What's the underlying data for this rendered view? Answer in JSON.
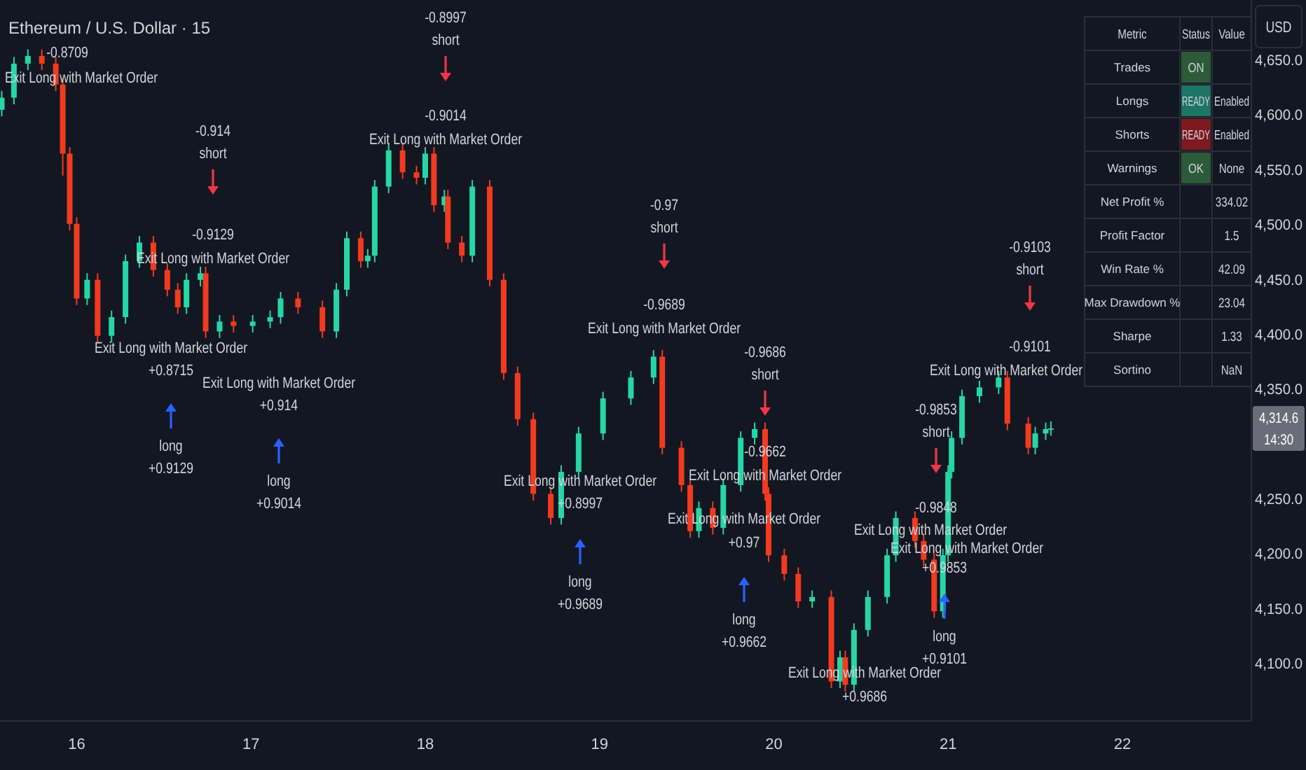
{
  "chart_data": [
    {
      "type": "candlestick",
      "title": "Ethereum / U.S. Dollar · 15",
      "ylabel": "USD",
      "x": [
        15.57,
        15.64,
        15.72,
        15.8,
        15.88,
        15.92,
        15.96,
        16.0,
        16.06,
        16.12,
        16.2,
        16.28,
        16.36,
        16.44,
        16.52,
        16.58,
        16.63,
        16.71,
        16.74,
        16.82,
        16.9,
        17.01,
        17.11,
        17.17,
        17.27,
        17.41,
        17.49,
        17.55,
        17.63,
        17.67,
        17.71,
        17.79,
        17.87,
        17.95,
        18.0,
        18.05,
        18.11,
        18.13,
        18.21,
        18.27,
        18.37,
        18.45,
        18.53,
        18.62,
        18.72,
        18.78,
        18.88,
        19.02,
        19.18,
        19.31,
        19.36,
        19.47,
        19.52,
        19.57,
        19.65,
        19.71,
        19.81,
        19.89,
        19.95,
        19.97,
        20.06,
        20.14,
        20.22,
        20.33,
        20.38,
        20.41,
        20.46,
        20.54,
        20.65,
        20.7,
        20.81,
        20.86,
        20.92,
        20.97,
        21.0,
        21.02,
        21.08,
        21.18,
        21.29,
        21.34,
        21.46,
        21.5,
        21.56,
        21.59
      ],
      "ohlc": [
        [
          4605,
          4622,
          4599,
          4616
        ],
        [
          4616,
          4653,
          4610,
          4647
        ],
        [
          4647,
          4660,
          4641,
          4654
        ],
        [
          4654,
          4660,
          4641,
          4647
        ],
        [
          4647,
          4653,
          4622,
          4628
        ],
        [
          4628,
          4634,
          4545,
          4565
        ],
        [
          4565,
          4571,
          4495,
          4501
        ],
        [
          4501,
          4507,
          4427,
          4433
        ],
        [
          4433,
          4456,
          4427,
          4450
        ],
        [
          4450,
          4456,
          4393,
          4399
        ],
        [
          4399,
          4422,
          4393,
          4416
        ],
        [
          4416,
          4473,
          4410,
          4467
        ],
        [
          4467,
          4490,
          4461,
          4484
        ],
        [
          4484,
          4490,
          4453,
          4459
        ],
        [
          4459,
          4465,
          4435,
          4441
        ],
        [
          4441,
          4447,
          4419,
          4425
        ],
        [
          4425,
          4456,
          4419,
          4450
        ],
        [
          4450,
          4462,
          4444,
          4456
        ],
        [
          4456,
          4462,
          4397,
          4403
        ],
        [
          4403,
          4418,
          4397,
          4412
        ],
        [
          4412,
          4418,
          4402,
          4408
        ],
        [
          4408,
          4418,
          4402,
          4412
        ],
        [
          4412,
          4422,
          4406,
          4416
        ],
        [
          4416,
          4439,
          4410,
          4433
        ],
        [
          4433,
          4439,
          4419,
          4425
        ],
        [
          4425,
          4431,
          4397,
          4403
        ],
        [
          4403,
          4447,
          4397,
          4441
        ],
        [
          4441,
          4494,
          4435,
          4488
        ],
        [
          4488,
          4494,
          4461,
          4467
        ],
        [
          4467,
          4478,
          4461,
          4472
        ],
        [
          4472,
          4541,
          4466,
          4535
        ],
        [
          4535,
          4574,
          4529,
          4568
        ],
        [
          4568,
          4574,
          4542,
          4548
        ],
        [
          4548,
          4554,
          4537,
          4543
        ],
        [
          4543,
          4571,
          4537,
          4565
        ],
        [
          4565,
          4571,
          4512,
          4518
        ],
        [
          4518,
          4532,
          4512,
          4526
        ],
        [
          4526,
          4532,
          4478,
          4484
        ],
        [
          4484,
          4490,
          4466,
          4472
        ],
        [
          4472,
          4541,
          4466,
          4535
        ],
        [
          4535,
          4541,
          4444,
          4450
        ],
        [
          4450,
          4456,
          4359,
          4365
        ],
        [
          4365,
          4371,
          4317,
          4323
        ],
        [
          4323,
          4329,
          4249,
          4255
        ],
        [
          4255,
          4261,
          4227,
          4233
        ],
        [
          4233,
          4281,
          4227,
          4275
        ],
        [
          4275,
          4316,
          4269,
          4310
        ],
        [
          4310,
          4348,
          4304,
          4342
        ],
        [
          4342,
          4367,
          4336,
          4361
        ],
        [
          4361,
          4386,
          4355,
          4380
        ],
        [
          4380,
          4386,
          4291,
          4297
        ],
        [
          4297,
          4303,
          4257,
          4263
        ],
        [
          4263,
          4269,
          4215,
          4221
        ],
        [
          4221,
          4248,
          4215,
          4242
        ],
        [
          4242,
          4248,
          4218,
          4224
        ],
        [
          4224,
          4269,
          4218,
          4263
        ],
        [
          4263,
          4312,
          4257,
          4306
        ],
        [
          4306,
          4320,
          4300,
          4314
        ],
        [
          4314,
          4320,
          4249,
          4255
        ],
        [
          4255,
          4261,
          4193,
          4199
        ],
        [
          4199,
          4205,
          4176,
          4182
        ],
        [
          4182,
          4188,
          4151,
          4157
        ],
        [
          4157,
          4167,
          4151,
          4161
        ],
        [
          4161,
          4167,
          4078,
          4084
        ],
        [
          4084,
          4112,
          4078,
          4106
        ],
        [
          4106,
          4112,
          4075,
          4081
        ],
        [
          4081,
          4137,
          4075,
          4131
        ],
        [
          4131,
          4167,
          4125,
          4161
        ],
        [
          4161,
          4205,
          4155,
          4199
        ],
        [
          4199,
          4239,
          4193,
          4233
        ],
        [
          4233,
          4239,
          4206,
          4212
        ],
        [
          4212,
          4218,
          4189,
          4195
        ],
        [
          4195,
          4201,
          4142,
          4148
        ],
        [
          4148,
          4205,
          4142,
          4199
        ],
        [
          4199,
          4281,
          4193,
          4275
        ],
        [
          4275,
          4312,
          4269,
          4306
        ],
        [
          4306,
          4350,
          4300,
          4344
        ],
        [
          4344,
          4358,
          4338,
          4352
        ],
        [
          4352,
          4367,
          4346,
          4361
        ],
        [
          4361,
          4367,
          4313,
          4319
        ],
        [
          4319,
          4325,
          4291,
          4297
        ],
        [
          4297,
          4316,
          4291,
          4310
        ],
        [
          4310,
          4320,
          4304,
          4314
        ],
        [
          4314,
          4321,
          4308,
          4314.6
        ]
      ],
      "colors": [
        "#26d7a5",
        "#26d7a5",
        "#26d7a5",
        "#f23a1f",
        "#f23a1f",
        "#f23a1f",
        "#f23a1f",
        "#f23a1f",
        "#26d7a5",
        "#f23a1f",
        "#26d7a5",
        "#26d7a5",
        "#26d7a5",
        "#f23a1f",
        "#f23a1f",
        "#f23a1f",
        "#26d7a5",
        "#26d7a5",
        "#f23a1f",
        "#26d7a5",
        "#f23a1f",
        "#26d7a5",
        "#26d7a5",
        "#26d7a5",
        "#f23a1f",
        "#f23a1f",
        "#26d7a5",
        "#26d7a5",
        "#f23a1f",
        "#26d7a5",
        "#26d7a5",
        "#26d7a5",
        "#f23a1f",
        "#f23a1f",
        "#26d7a5",
        "#f23a1f",
        "#26d7a5",
        "#f23a1f",
        "#f23a1f",
        "#26d7a5",
        "#f23a1f",
        "#f23a1f",
        "#f23a1f",
        "#f23a1f",
        "#f23a1f",
        "#26d7a5",
        "#26d7a5",
        "#26d7a5",
        "#26d7a5",
        "#26d7a5",
        "#f23a1f",
        "#f23a1f",
        "#f23a1f",
        "#26d7a5",
        "#f23a1f",
        "#26d7a5",
        "#26d7a5",
        "#26d7a5",
        "#f23a1f",
        "#f23a1f",
        "#f23a1f",
        "#f23a1f",
        "#26d7a5",
        "#f23a1f",
        "#26d7a5",
        "#f23a1f",
        "#26d7a5",
        "#26d7a5",
        "#26d7a5",
        "#26d7a5",
        "#f23a1f",
        "#f23a1f",
        "#f23a1f",
        "#26d7a5",
        "#26d7a5",
        "#26d7a5",
        "#26d7a5",
        "#26d7a5",
        "#26d7a5",
        "#f23a1f",
        "#f23a1f",
        "#26d7a5",
        "#26d7a5",
        "#26d7a5"
      ],
      "xlim": [
        15.56,
        22.74
      ],
      "xticks": [
        16,
        17,
        18,
        19,
        20,
        21,
        22
      ],
      "ylim": [
        4048,
        4705
      ],
      "yticks": [
        {
          "value": 4100,
          "label": "4,100.0"
        },
        {
          "value": 4150,
          "label": "4,150.0"
        },
        {
          "value": 4200,
          "label": "4,200.0"
        },
        {
          "value": 4250,
          "label": "4,250.0"
        },
        {
          "value": 4350,
          "label": "4,350.0"
        },
        {
          "value": 4400,
          "label": "4,400.0"
        },
        {
          "value": 4450,
          "label": "4,450.0"
        },
        {
          "value": 4500,
          "label": "4,500.0"
        },
        {
          "value": 4550,
          "label": "4,550.0"
        },
        {
          "value": 4600,
          "label": "4,600.0"
        },
        {
          "value": 4650,
          "label": "4,650.0"
        }
      ],
      "annotations": [
        "-0.8709",
        "Exit Long with Market Order",
        "-0.914\nshort",
        "-0.9129",
        "Exit Long with Market Order",
        "-0.8997\nshort",
        "-0.9014",
        "Exit Long with Market Order",
        "-0.97\nshort",
        "-0.9689",
        "Exit Long with Market Order",
        "-0.9686\nshort",
        "-0.9662",
        "Exit Long with Market Order",
        "-0.9103\nshort",
        "-0.9101",
        "Exit Long with Market Order",
        "-0.9853\nshort",
        "-0.9848",
        "Exit Long with Market Order",
        "Exit Long with Market Order",
        "+0.9853",
        "long\n+0.9101",
        "Exit Long with Market Order",
        "+0.8715",
        "long\n+0.9129",
        "Exit Long with Market Order",
        "+0.914",
        "long\n+0.9014",
        "Exit Long with Market Order",
        "+0.8997",
        "long\n+0.9689",
        "Exit Long with Market Order",
        "+0.97",
        "long\n+0.9662",
        "Exit Long with Market Order",
        "+0.9686",
        "4,314.6\n14:30"
      ]
    },
    {
      "type": "other",
      "categories": [
        "Metric",
        "Status",
        "Value"
      ],
      "y_categories": [
        "Trades",
        "Longs",
        "Shorts",
        "Warnings",
        "Net Profit %",
        "Profit Factor",
        "Win Rate %",
        "Max Drawdown %",
        "Sharpe",
        "Sortino"
      ],
      "annotations": [
        {
          "text": "ON",
          "x": "Status",
          "y": "Trades"
        },
        {
          "text": "READY",
          "x": "Status",
          "y": "Longs"
        },
        {
          "text": "Enabled",
          "x": "Value",
          "y": "Longs"
        },
        {
          "text": "READY",
          "x": "Status",
          "y": "Shorts"
        },
        {
          "text": "Enabled",
          "x": "Value",
          "y": "Shorts"
        },
        {
          "text": "OK",
          "x": "Status",
          "y": "Warnings"
        },
        {
          "text": "None",
          "x": "Value",
          "y": "Warnings"
        },
        {
          "text": "334.02",
          "x": "Value",
          "y": "Net Profit %"
        },
        {
          "text": "1.5",
          "x": "Value",
          "y": "Profit Factor"
        },
        {
          "text": "42.09",
          "x": "Value",
          "y": "Win Rate %"
        },
        {
          "text": "23.04",
          "x": "Value",
          "y": "Max Drawdown %"
        },
        {
          "text": "1.33",
          "x": "Value",
          "y": "Sharpe"
        },
        {
          "text": "NaN",
          "x": "Value",
          "y": "Sortino"
        }
      ],
      "colors": [
        "#2d5a38",
        "#1d7563",
        null,
        "#7e1a1f",
        null,
        "#2d5a38",
        null,
        null,
        null,
        null,
        null,
        null,
        null
      ]
    }
  ]
}
